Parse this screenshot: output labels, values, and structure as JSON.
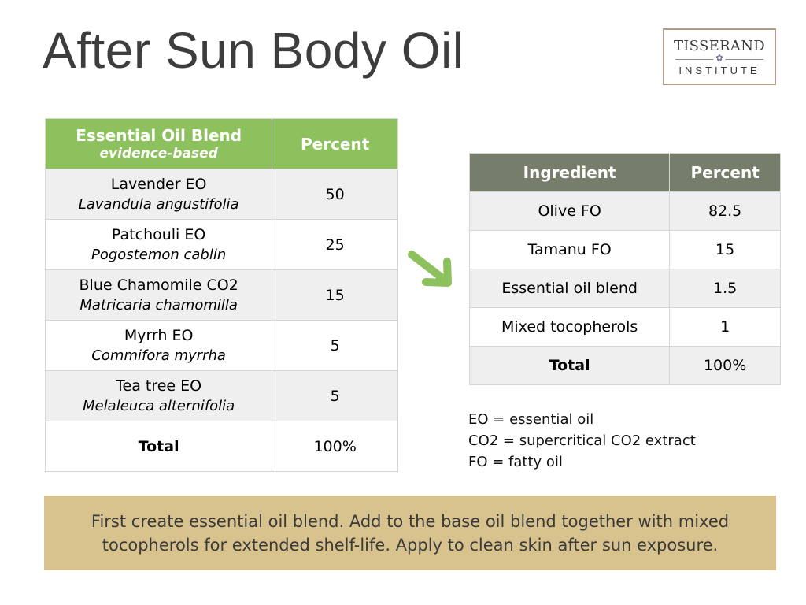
{
  "title": "After Sun Body Oil",
  "logo": {
    "top": "TISSERAND",
    "bottom": "INSTITUTE",
    "icon": "lavender-flower-icon"
  },
  "blend_table": {
    "header_title": "Essential Oil Blend",
    "header_subtitle": "evidence-based",
    "header_percent": "Percent",
    "rows": [
      {
        "name": "Lavender EO",
        "latin": "Lavandula angustifolia",
        "percent": "50"
      },
      {
        "name": "Patchouli EO",
        "latin": "Pogostemon cablin",
        "percent": "25"
      },
      {
        "name": "Blue Chamomile CO2",
        "latin": "Matricaria chamomilla",
        "percent": "15"
      },
      {
        "name": "Myrrh EO",
        "latin": "Commifora myrrha",
        "percent": "5"
      },
      {
        "name": "Tea tree EO",
        "latin": "Melaleuca alternifolia",
        "percent": "5"
      }
    ],
    "total_label": "Total",
    "total_value": "100%"
  },
  "ingredient_table": {
    "header_ingredient": "Ingredient",
    "header_percent": "Percent",
    "rows": [
      {
        "name": "Olive FO",
        "percent": "82.5"
      },
      {
        "name": "Tamanu FO",
        "percent": "15"
      },
      {
        "name": "Essential oil blend",
        "percent": "1.5"
      },
      {
        "name": "Mixed tocopherols",
        "percent": "1"
      }
    ],
    "total_label": "Total",
    "total_value": "100%"
  },
  "legend": [
    "EO = essential oil",
    "CO2 = supercritical CO2 extract",
    "FO = fatty oil"
  ],
  "note": {
    "line1": "First create essential oil blend. Add to the base oil blend together with mixed",
    "line2": "tocopherols for extended shelf-life. Apply to clean skin after sun exposure."
  },
  "colors": {
    "blend_header": "#8cc15e",
    "ingredient_header": "#767d6a",
    "arrow": "#8cc15e",
    "note_background": "#d8c38f"
  }
}
